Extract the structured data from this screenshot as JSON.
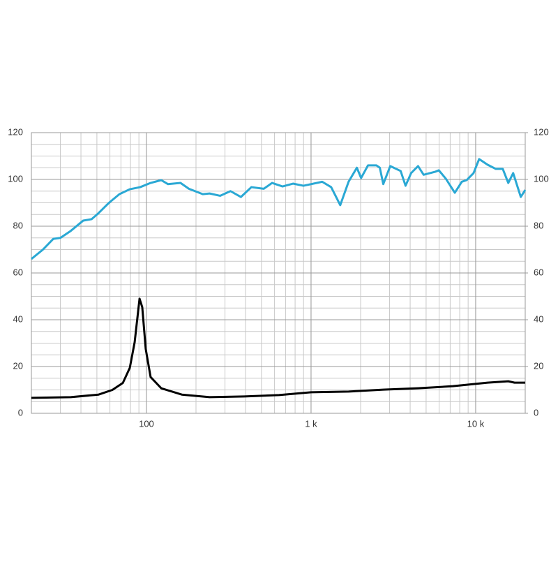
{
  "chart_data": {
    "type": "line",
    "log_x": true,
    "xlim": [
      20,
      20000
    ],
    "xticks": [
      100,
      {
        "value": 1000,
        "label": "1 k"
      },
      {
        "value": 10000,
        "label": "10 k"
      }
    ],
    "xgrid": [
      20,
      30,
      40,
      50,
      60,
      70,
      80,
      90,
      100,
      200,
      300,
      400,
      500,
      600,
      700,
      800,
      900,
      1000,
      2000,
      3000,
      4000,
      5000,
      6000,
      7000,
      8000,
      9000,
      10000,
      20000
    ],
    "ylim": [
      0,
      120
    ],
    "yticks": [
      0,
      20,
      40,
      60,
      80,
      100,
      120
    ],
    "ygrid": [
      0,
      5,
      10,
      15,
      20,
      25,
      30,
      35,
      40,
      45,
      50,
      55,
      60,
      65,
      70,
      75,
      80,
      85,
      90,
      95,
      100,
      105,
      110,
      115,
      120
    ],
    "y2lim": [
      0,
      120
    ],
    "y2ticks": [
      0,
      20,
      40,
      60,
      80,
      100,
      120
    ],
    "grid": true,
    "series": [
      {
        "color": "#2aa8d4",
        "x": [
          20,
          23.5,
          27.2,
          30,
          34.7,
          41.3,
          46.4,
          51.2,
          59.2,
          68.5,
          79.2,
          91.6,
          106,
          123,
          135,
          161,
          181,
          220,
          242,
          280,
          324,
          375,
          434,
          516,
          580,
          671,
          777,
          899,
          1169,
          1325,
          1504,
          1690,
          1898,
          2014,
          2218,
          2494,
          2617,
          2746,
          3027,
          3502,
          3750,
          4053,
          4467,
          4830,
          5693,
          5975,
          6589,
          7470,
          8240,
          8818,
          9710,
          10500,
          11800,
          13250,
          14610,
          15780,
          16900,
          18800,
          20000
        ],
        "values": [
          66,
          70,
          74.6,
          75,
          78,
          82.4,
          83,
          85.6,
          90,
          93.7,
          95.8,
          96.7,
          98.5,
          99.7,
          98,
          98.5,
          96,
          93.7,
          94,
          93,
          95,
          92.5,
          96.7,
          96,
          98.5,
          97,
          98.2,
          97.3,
          99,
          96.7,
          89,
          99,
          105,
          100.6,
          106,
          106,
          105,
          98,
          105.7,
          103.6,
          97.3,
          102.7,
          105.7,
          102,
          103.3,
          103.9,
          100.3,
          94.3,
          99,
          99.7,
          102.7,
          108.7,
          106.3,
          104.5,
          104.5,
          98.5,
          102.7,
          92.5,
          95.5
        ]
      },
      {
        "color": "#000000",
        "x": [
          20,
          34.7,
          51.2,
          62.1,
          71.9,
          79.2,
          84.8,
          90.8,
          94.3,
          99,
          106,
          123,
          164,
          242,
          393,
          639,
          1000,
          1690,
          2746,
          4467,
          7280,
          11800,
          15780,
          17230,
          20000
        ],
        "values": [
          6.6,
          6.9,
          8,
          10,
          13,
          19.4,
          30.4,
          49,
          45.4,
          27.5,
          15.5,
          10.7,
          8,
          6.9,
          7.2,
          7.8,
          9,
          9.3,
          10.1,
          10.7,
          11.6,
          13.1,
          13.7,
          13.1,
          13.1
        ]
      }
    ]
  }
}
